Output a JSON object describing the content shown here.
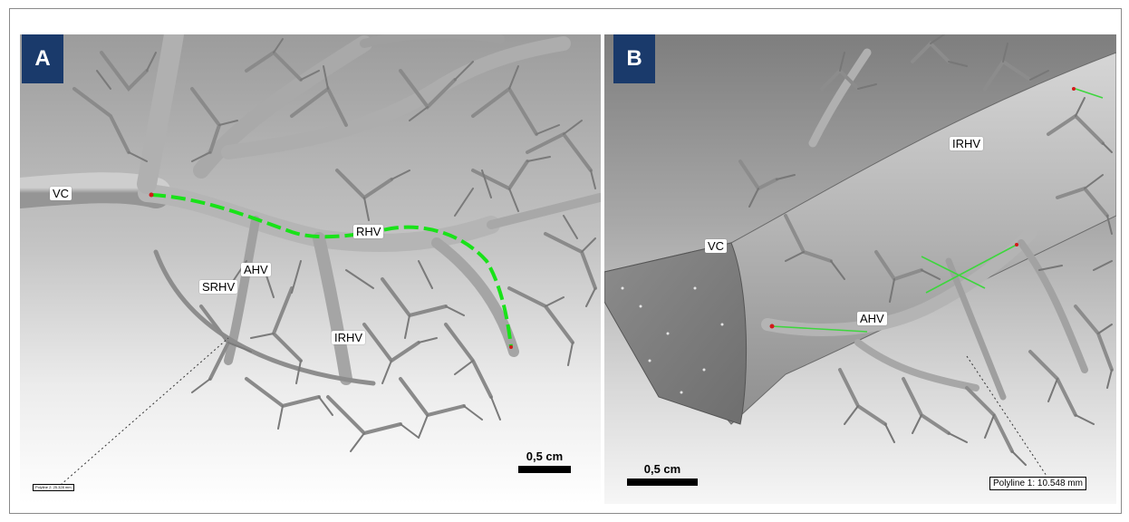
{
  "panels": [
    {
      "id": "A",
      "letter": "A",
      "labels": {
        "vc": "VC",
        "rhv": "RHV",
        "ahv": "AHV",
        "srhv": "SRHV",
        "irhv": "IRHV"
      },
      "scale_bar": "0,5 cm",
      "measurement": "Polyline 2: 25.328 mm",
      "path_color": "#19e219"
    },
    {
      "id": "B",
      "letter": "B",
      "labels": {
        "vc": "VC",
        "irhv": "IRHV",
        "ahv": "AHV"
      },
      "scale_bar": "0,5 cm",
      "measurement": "Polyline 1: 10.548 mm",
      "path_color": "#3ed63e"
    }
  ]
}
